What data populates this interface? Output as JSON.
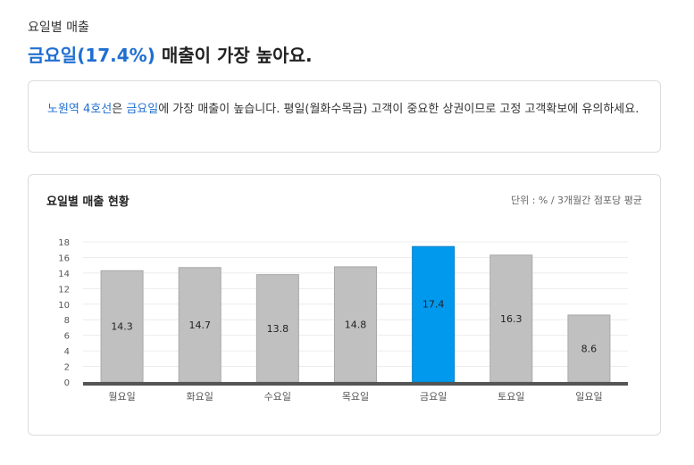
{
  "header": {
    "section_label": "요일별 매출",
    "headline_highlight": "금요일(17.4%)",
    "headline_rest": " 매출이 가장 높아요."
  },
  "description": {
    "area_name": "노원역 4호선",
    "text_1": "은 ",
    "day_highlight": "금요일",
    "text_2": "에 가장 매출이 높습니다. 평일(월화수목금) 고객이 중요한 상권이므로 고정 고객확보에 유의하세요."
  },
  "chart_card": {
    "title": "요일별 매출 현황",
    "unit": "단위 : % / 3개월간 점포당 평균"
  },
  "chart_data": {
    "type": "bar",
    "title": "요일별 매출 현황",
    "categories": [
      "월요일",
      "화요일",
      "수요일",
      "목요일",
      "금요일",
      "토요일",
      "일요일"
    ],
    "values": [
      14.3,
      14.7,
      13.8,
      14.8,
      17.4,
      16.3,
      8.6
    ],
    "yticks": [
      0,
      2,
      4,
      6,
      8,
      10,
      12,
      14,
      16,
      18
    ],
    "ylim": [
      0,
      18
    ],
    "highlight_index": 4,
    "grid": true,
    "colors": {
      "bar": "#c0c0c0",
      "bar_border": "#a8a8a8",
      "highlight": "#0099ee",
      "highlight_border": "#0a7fc4",
      "baseline": "#555555"
    }
  }
}
